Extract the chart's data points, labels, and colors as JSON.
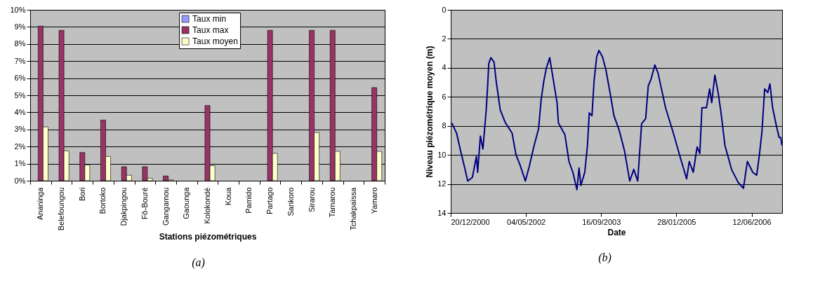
{
  "chart_data": [
    {
      "type": "bar",
      "xlabel": "Stations piézométriques",
      "categories": [
        "Ananinga",
        "Belefoungou",
        "Bori",
        "Bortoko",
        "Djakpingou",
        "Fô-Bouré",
        "Gangamou",
        "Gaounga",
        "Kolokondé",
        "Koua",
        "Pamido",
        "Partago",
        "Sankoro",
        "Sirarou",
        "Tamarou",
        "Tchakpaïssa",
        "Yamaro"
      ],
      "series": [
        {
          "name": "Taux min",
          "color": "#9999ff",
          "values": [
            0,
            0,
            0,
            0,
            0,
            0,
            0,
            0,
            0,
            0,
            0,
            0,
            0,
            0,
            0,
            0,
            0
          ]
        },
        {
          "name": "Taux max",
          "color": "#993366",
          "values": [
            9.05,
            8.8,
            1.65,
            3.55,
            0.82,
            0.82,
            0.28,
            0,
            4.4,
            0,
            0,
            8.8,
            0,
            8.8,
            8.8,
            0,
            5.45
          ]
        },
        {
          "name": "Taux moyen",
          "color": "#ffffcc",
          "values": [
            3.15,
            1.75,
            0.92,
            1.42,
            0.32,
            0.15,
            0.05,
            0,
            0.88,
            0,
            0,
            1.6,
            0,
            2.82,
            1.72,
            0,
            1.72
          ]
        }
      ],
      "ylim": [
        0,
        10
      ],
      "yticks": [
        {
          "value": 0,
          "label": "0%"
        },
        {
          "value": 1,
          "label": "1%"
        },
        {
          "value": 2,
          "label": "2%"
        },
        {
          "value": 3,
          "label": "3%"
        },
        {
          "value": 4,
          "label": "4%"
        },
        {
          "value": 5,
          "label": "5%"
        },
        {
          "value": 6,
          "label": "6%"
        },
        {
          "value": 7,
          "label": "7%"
        },
        {
          "value": 8,
          "label": "8%"
        },
        {
          "value": 9,
          "label": "9%"
        },
        {
          "value": 10,
          "label": "10%"
        }
      ],
      "grid": "y",
      "legend": "top",
      "annotations": [
        "(a)"
      ]
    },
    {
      "type": "line",
      "xlabel": "Date",
      "ylabel": "Niveau piézométrique moyen (m)",
      "x": [
        "2000-12-27",
        "2001-01-28",
        "2001-02-23",
        "2001-03-21",
        "2001-04-12",
        "2001-05-13",
        "2001-06-09",
        "2001-06-17",
        "2001-07-05",
        "2001-07-22",
        "2001-08-13",
        "2001-08-21",
        "2001-08-30",
        "2001-09-13",
        "2001-10-04",
        "2001-10-18",
        "2001-11-14",
        "2001-12-19",
        "2002-02-01",
        "2002-02-27",
        "2002-03-26",
        "2002-04-30",
        "2002-05-26",
        "2002-06-25",
        "2002-07-27",
        "2002-08-13",
        "2002-08-31",
        "2002-09-17",
        "2002-10-09",
        "2002-10-31",
        "2002-11-27",
        "2002-12-06",
        "2003-01-18",
        "2003-02-14",
        "2003-03-12",
        "2003-04-08",
        "2003-04-22",
        "2003-05-04",
        "2003-05-30",
        "2003-06-17",
        "2003-06-29",
        "2003-07-17",
        "2003-07-31",
        "2003-08-17",
        "2003-09-01",
        "2003-09-25",
        "2003-10-18",
        "2003-11-13",
        "2003-12-10",
        "2004-01-14",
        "2004-02-18",
        "2004-03-24",
        "2004-04-20",
        "2004-05-16",
        "2004-06-11",
        "2004-07-08",
        "2004-07-25",
        "2004-08-12",
        "2004-09-07",
        "2004-09-28",
        "2004-10-21",
        "2004-11-17",
        "2005-01-08",
        "2005-02-21",
        "2005-04-06",
        "2005-04-24",
        "2005-05-20",
        "2005-06-15",
        "2005-07-03",
        "2005-07-17",
        "2005-08-16",
        "2005-09-06",
        "2005-09-20",
        "2005-10-11",
        "2005-11-03",
        "2005-11-21",
        "2005-12-17",
        "2006-01-30",
        "2006-03-15",
        "2006-04-19",
        "2006-05-15",
        "2006-06-20",
        "2006-07-16",
        "2006-08-03",
        "2006-08-20",
        "2006-09-07",
        "2006-09-28",
        "2006-10-12",
        "2006-10-30",
        "2006-11-25",
        "2006-12-12",
        "2006-12-23",
        "2006-12-31"
      ],
      "series": [
        {
          "color": "#000080",
          "values": [
            7.8,
            8.5,
            9.7,
            10.8,
            11.8,
            11.55,
            10.1,
            11.2,
            8.7,
            9.6,
            6.9,
            5.5,
            3.7,
            3.3,
            3.6,
            4.9,
            6.9,
            7.8,
            8.5,
            10,
            10.7,
            11.8,
            10.8,
            9.45,
            8.2,
            6.2,
            4.9,
            4,
            3.3,
            4.7,
            6.4,
            7.8,
            8.6,
            10.45,
            11.2,
            12.4,
            10.9,
            12.1,
            11.2,
            9.35,
            7.1,
            7.3,
            4.9,
            3.25,
            2.8,
            3.25,
            4.15,
            5.65,
            7.3,
            8.3,
            9.7,
            11.8,
            11,
            11.8,
            7.85,
            7.5,
            5.25,
            4.8,
            3.8,
            4.35,
            5.45,
            6.75,
            8.5,
            10.1,
            11.65,
            10.45,
            11.2,
            9.45,
            9.9,
            6.75,
            6.75,
            5.45,
            6.4,
            4.5,
            5.8,
            7.1,
            9.35,
            11,
            11.9,
            12.3,
            10.45,
            11.2,
            11.4,
            10,
            8.4,
            5.45,
            5.7,
            5.1,
            6.75,
            8.05,
            8.8,
            8.8,
            9.35
          ]
        }
      ],
      "xlim": [
        "2000-12-20",
        "2007-01-01"
      ],
      "xticks": [
        {
          "value": "2000-12-20",
          "label": "20/12/2000"
        },
        {
          "value": "2002-05-04",
          "label": "04/05/2002"
        },
        {
          "value": "2003-09-16",
          "label": "16/09/2003"
        },
        {
          "value": "2005-01-28",
          "label": "28/01/2005"
        },
        {
          "value": "2006-06-12",
          "label": "12/06/2006"
        }
      ],
      "ylim": [
        14,
        0
      ],
      "yticks": [
        0,
        2,
        4,
        6,
        8,
        10,
        12,
        14
      ],
      "grid": "y",
      "annotations": [
        "(b)"
      ]
    }
  ]
}
